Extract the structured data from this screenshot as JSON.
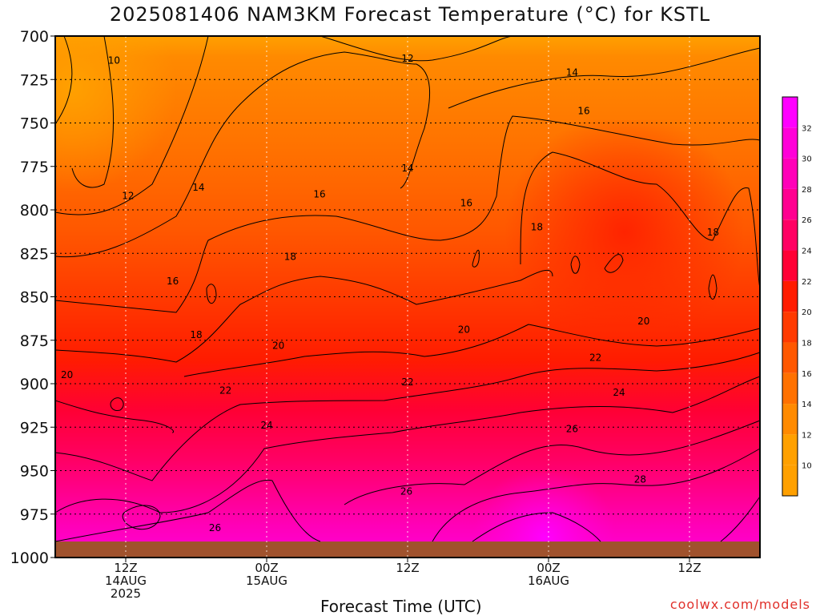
{
  "title": "2025081406 NAM3KM Forecast Temperature (°C) for KSTL",
  "x_axis_title": "Forecast Time (UTC)",
  "credit": "coolwx.com/models",
  "chart_data": {
    "type": "heatmap",
    "subtype": "time-pressure filled contour",
    "title": "2025081406 NAM3KM Forecast Temperature (°C) for KSTL",
    "xlabel": "Forecast Time (UTC)",
    "ylabel": "",
    "ylim": [
      1000,
      700
    ],
    "y_inverted": true,
    "y_ticks": [
      "700",
      "725",
      "750",
      "775",
      "800",
      "825",
      "850",
      "875",
      "900",
      "925",
      "950",
      "975",
      "1000"
    ],
    "x_ticks": [
      {
        "hour": 12,
        "lines": [
          "12Z",
          "14AUG",
          "2025"
        ]
      },
      {
        "hour": 24,
        "lines": [
          "00Z",
          "15AUG"
        ]
      },
      {
        "hour": 36,
        "lines": [
          "12Z"
        ]
      },
      {
        "hour": 48,
        "lines": [
          "00Z",
          "16AUG"
        ]
      },
      {
        "hour": 60,
        "lines": [
          "12Z"
        ]
      }
    ],
    "xlim_hours": [
      6,
      66
    ],
    "grid": true,
    "colorbar": {
      "position": "right",
      "levels": [
        10,
        12,
        14,
        16,
        18,
        20,
        22,
        24,
        26,
        28,
        30,
        32
      ],
      "colors": [
        "#ffa000",
        "#ff8a00",
        "#ff7100",
        "#ff5800",
        "#ff3a00",
        "#ff1c00",
        "#ff0035",
        "#ff0063",
        "#ff0090",
        "#ff00b8",
        "#ff00d8",
        "#ff00ff"
      ]
    },
    "contour_labels": [
      {
        "text": "10",
        "hour": 11.0,
        "p": 714
      },
      {
        "text": "12",
        "hour": 36.0,
        "p": 713
      },
      {
        "text": "14",
        "hour": 50.0,
        "p": 721
      },
      {
        "text": "16",
        "hour": 51.0,
        "p": 743
      },
      {
        "text": "14",
        "hour": 36.0,
        "p": 776
      },
      {
        "text": "12",
        "hour": 12.2,
        "p": 792
      },
      {
        "text": "14",
        "hour": 18.2,
        "p": 787
      },
      {
        "text": "16",
        "hour": 28.5,
        "p": 791
      },
      {
        "text": "16",
        "hour": 41.0,
        "p": 796
      },
      {
        "text": "18",
        "hour": 47.0,
        "p": 810
      },
      {
        "text": "18",
        "hour": 62.0,
        "p": 813
      },
      {
        "text": "18",
        "hour": 26.0,
        "p": 827
      },
      {
        "text": "16",
        "hour": 16.0,
        "p": 841
      },
      {
        "text": "18",
        "hour": 18.0,
        "p": 872
      },
      {
        "text": "20",
        "hour": 25.0,
        "p": 878
      },
      {
        "text": "20",
        "hour": 40.8,
        "p": 869
      },
      {
        "text": "20",
        "hour": 56.1,
        "p": 864
      },
      {
        "text": "22",
        "hour": 52.0,
        "p": 885
      },
      {
        "text": "20",
        "hour": 7.0,
        "p": 895
      },
      {
        "text": "22",
        "hour": 20.5,
        "p": 904
      },
      {
        "text": "22",
        "hour": 36.0,
        "p": 899
      },
      {
        "text": "24",
        "hour": 54.0,
        "p": 905
      },
      {
        "text": "24",
        "hour": 24.0,
        "p": 924
      },
      {
        "text": "26",
        "hour": 50.0,
        "p": 926
      },
      {
        "text": "28",
        "hour": 55.8,
        "p": 955
      },
      {
        "text": "26",
        "hour": 35.9,
        "p": 962
      },
      {
        "text": "26",
        "hour": 19.6,
        "p": 983
      }
    ]
  }
}
